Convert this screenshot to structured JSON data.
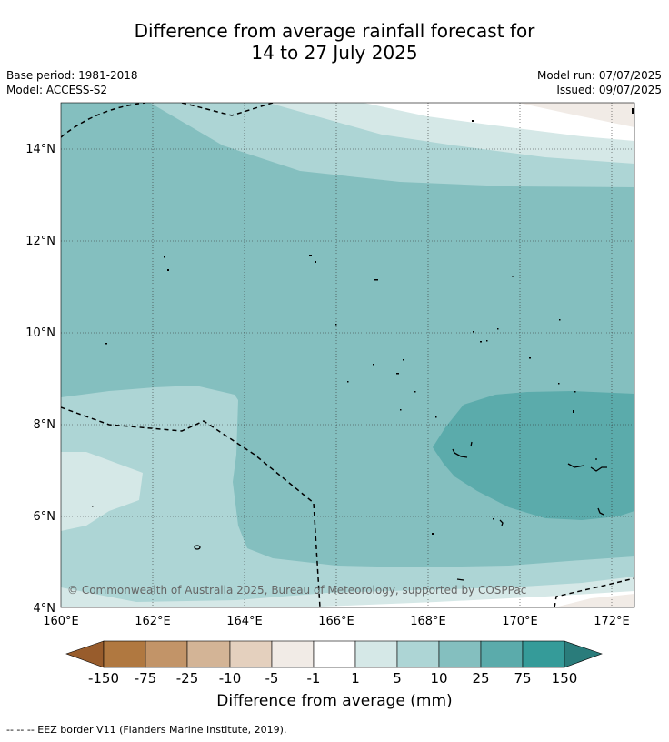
{
  "title_line1": "Difference from average rainfall forecast for",
  "title_line2": "14 to 27 July 2025",
  "meta": {
    "base_period": "Base period: 1981-2018",
    "model": "Model: ACCESS-S2",
    "model_run": "Model run: 07/07/2025",
    "issued": "Issued: 09/07/2025"
  },
  "map": {
    "lon_ticks": [
      "160°E",
      "162°E",
      "164°E",
      "166°E",
      "168°E",
      "170°E",
      "172°E"
    ],
    "lat_ticks": [
      "4°N",
      "6°N",
      "8°N",
      "10°N",
      "12°N",
      "14°N"
    ],
    "copyright": "© Commonwealth of Australia 2025, Bureau of Meteorology, supported by COSPPac"
  },
  "legend": {
    "title": "Difference from average (mm)",
    "tick_labels": [
      "-150",
      "-75",
      "-25",
      "-10",
      "-5",
      "-1",
      "1",
      "5",
      "10",
      "25",
      "75",
      "150"
    ],
    "colors": [
      "#985c2c",
      "#b07840",
      "#c29468",
      "#d3b496",
      "#e4d0be",
      "#f1ebe6",
      "#ffffff",
      "#d5e8e7",
      "#add5d5",
      "#84bfbf",
      "#5babab",
      "#359b99",
      "#2a7c7b"
    ]
  },
  "footnote": "--  --  -- EEZ border V11 (Flanders Marine Institute, 2019)."
}
